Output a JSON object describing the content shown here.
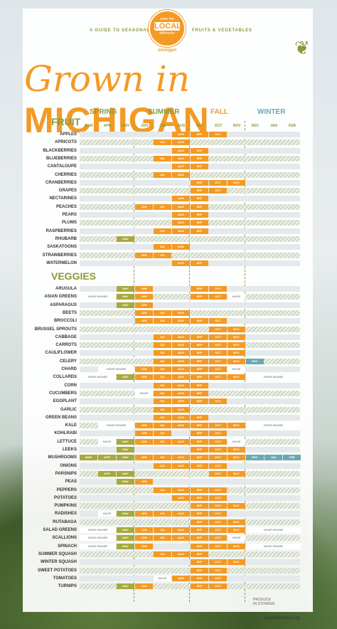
{
  "header": {
    "guide_left": "A GUIDE TO SEASONAL",
    "guide_right": "FRUITS & VEGETABLES",
    "logo_line1": "taste the",
    "logo_line2": "LOCAL",
    "logo_line3": "difference",
    "logo_line4": "michigan",
    "title_script": "Grown in",
    "title_caps": "MICHIGAN"
  },
  "seasons": [
    "SPRING",
    "SUMMER",
    "FALL",
    "WINTER"
  ],
  "months": [
    "MAR",
    "APR",
    "MAY",
    "JUN",
    "JUL",
    "AUG",
    "SEP",
    "OCT",
    "NOV",
    "DEC",
    "JAN",
    "FEB"
  ],
  "sections": {
    "fruit": "FRUIT",
    "veggies": "VEGGIES"
  },
  "fruit": [
    {
      "name": "APPLES",
      "cells": [
        [
          5,
          "AUG",
          "o"
        ],
        [
          6,
          "SEP",
          "o"
        ],
        [
          7,
          "OCT",
          "o"
        ]
      ]
    },
    {
      "name": "APRICOTS",
      "cells": [
        [
          4,
          "JUL",
          "o"
        ],
        [
          5,
          "AUG",
          "o"
        ]
      ]
    },
    {
      "name": "BLACKBERRIES",
      "cells": [
        [
          5,
          "AUG",
          "o"
        ],
        [
          6,
          "SEP",
          "o"
        ]
      ]
    },
    {
      "name": "BLUEBERRIES",
      "cells": [
        [
          4,
          "JUL",
          "o"
        ],
        [
          5,
          "AUG",
          "o"
        ],
        [
          6,
          "SEP",
          "o"
        ]
      ]
    },
    {
      "name": "CANTALOUPE",
      "cells": [
        [
          5,
          "AUG",
          "o"
        ],
        [
          6,
          "SEP",
          "o"
        ]
      ]
    },
    {
      "name": "CHERRIES",
      "cells": [
        [
          4,
          "JUL",
          "o"
        ],
        [
          5,
          "AUG",
          "o"
        ]
      ]
    },
    {
      "name": "CRANBERRIES",
      "cells": [
        [
          6,
          "SEP",
          "o"
        ],
        [
          7,
          "OCT",
          "o"
        ],
        [
          8,
          "NOV",
          "o"
        ]
      ]
    },
    {
      "name": "GRAPES",
      "cells": [
        [
          6,
          "SEP",
          "o"
        ],
        [
          7,
          "OCT",
          "o"
        ]
      ]
    },
    {
      "name": "NECTARINES",
      "cells": [
        [
          5,
          "AUG",
          "o"
        ],
        [
          6,
          "SEP",
          "o"
        ]
      ]
    },
    {
      "name": "PEACHES",
      "cells": [
        [
          3,
          "JUN",
          "o"
        ],
        [
          4,
          "JUL",
          "o"
        ],
        [
          5,
          "AUG",
          "o"
        ],
        [
          6,
          "SEP",
          "o"
        ]
      ]
    },
    {
      "name": "PEARS",
      "cells": [
        [
          5,
          "AUG",
          "o"
        ],
        [
          6,
          "SEP",
          "o"
        ]
      ]
    },
    {
      "name": "PLUMS",
      "cells": [
        [
          5,
          "AUG",
          "o"
        ],
        [
          6,
          "SEP",
          "o"
        ]
      ]
    },
    {
      "name": "RASPBERRIES",
      "cells": [
        [
          4,
          "JUL",
          "o"
        ],
        [
          5,
          "AUG",
          "o"
        ],
        [
          6,
          "SEP",
          "o"
        ]
      ]
    },
    {
      "name": "RHUBARB",
      "cells": [
        [
          2,
          "MAY",
          "g"
        ]
      ]
    },
    {
      "name": "SASKATOONS",
      "cells": [
        [
          4,
          "JUL",
          "o"
        ],
        [
          5,
          "AUG",
          "o"
        ]
      ]
    },
    {
      "name": "STRAWBERRIES",
      "cells": [
        [
          3,
          "JUN",
          "o"
        ],
        [
          4,
          "JUL",
          "o"
        ]
      ]
    },
    {
      "name": "WATERMELON",
      "cells": [
        [
          5,
          "AUG",
          "o"
        ],
        [
          6,
          "SEP",
          "o"
        ]
      ]
    }
  ],
  "veggies": [
    {
      "name": "ARUGULA",
      "cells": [
        [
          2,
          "MAY",
          "g"
        ],
        [
          3,
          "JUN",
          "o"
        ],
        [
          6,
          "SEP",
          "o"
        ],
        [
          7,
          "OCT",
          "o"
        ]
      ]
    },
    {
      "name": "ASIAN GREENS",
      "cells": [
        [
          0,
          "HOOP HOUSE",
          "w",
          2
        ],
        [
          2,
          "MAY",
          "g"
        ],
        [
          3,
          "JUN",
          "o"
        ],
        [
          6,
          "SEP",
          "o"
        ],
        [
          7,
          "OCT",
          "o"
        ],
        [
          8,
          "HOOP",
          "w"
        ]
      ]
    },
    {
      "name": "ASPARAGUS",
      "cells": [
        [
          2,
          "MAY",
          "g"
        ],
        [
          3,
          "JUN",
          "o"
        ]
      ]
    },
    {
      "name": "BEETS",
      "cells": [
        [
          3,
          "JUN",
          "o"
        ],
        [
          4,
          "JUL",
          "o"
        ],
        [
          5,
          "AUG",
          "o"
        ]
      ]
    },
    {
      "name": "BROCCOLI",
      "cells": [
        [
          3,
          "JUN",
          "o"
        ],
        [
          4,
          "JUL",
          "o"
        ],
        [
          5,
          "AUG",
          "o"
        ],
        [
          6,
          "SEP",
          "o"
        ],
        [
          7,
          "OCT",
          "o"
        ]
      ]
    },
    {
      "name": "BRUSSEL SPROUTS",
      "cells": [
        [
          7,
          "OCT",
          "o"
        ],
        [
          8,
          "NOV",
          "o"
        ]
      ]
    },
    {
      "name": "CABBAGE",
      "cells": [
        [
          4,
          "JUL",
          "o"
        ],
        [
          5,
          "AUG",
          "o"
        ],
        [
          6,
          "SEP",
          "o"
        ],
        [
          7,
          "OCT",
          "o"
        ],
        [
          8,
          "NOV",
          "o"
        ]
      ]
    },
    {
      "name": "CARROTS",
      "cells": [
        [
          4,
          "JUL",
          "o"
        ],
        [
          5,
          "AUG",
          "o"
        ],
        [
          6,
          "SEP",
          "o"
        ],
        [
          7,
          "OCT",
          "o"
        ],
        [
          8,
          "NOV",
          "o"
        ]
      ]
    },
    {
      "name": "CAULIFLOWER",
      "cells": [
        [
          4,
          "JUL",
          "o"
        ],
        [
          5,
          "AUG",
          "o"
        ],
        [
          6,
          "SEP",
          "o"
        ],
        [
          7,
          "OCT",
          "o"
        ],
        [
          8,
          "NOV",
          "o"
        ]
      ]
    },
    {
      "name": "CELERY",
      "cells": [
        [
          4,
          "JUL",
          "o"
        ],
        [
          5,
          "AUG",
          "o"
        ],
        [
          6,
          "SEP",
          "o"
        ],
        [
          7,
          "OCT",
          "o"
        ],
        [
          8,
          "NOV",
          "o"
        ],
        [
          9,
          "DEC",
          "b"
        ]
      ]
    },
    {
      "name": "CHARD",
      "cells": [
        [
          1,
          "HOOP HOUSE",
          "w",
          2
        ],
        [
          3,
          "JUN",
          "o"
        ],
        [
          4,
          "JUL",
          "o"
        ],
        [
          5,
          "AUG",
          "o"
        ],
        [
          6,
          "SEP",
          "o"
        ],
        [
          7,
          "OCT",
          "o"
        ],
        [
          8,
          "HOOP",
          "w"
        ]
      ]
    },
    {
      "name": "COLLARDS",
      "cells": [
        [
          0,
          "HOOP HOUSE",
          "w",
          2
        ],
        [
          2,
          "MAY",
          "g"
        ],
        [
          3,
          "JUN",
          "o"
        ],
        [
          4,
          "JUL",
          "o"
        ],
        [
          5,
          "AUG",
          "o"
        ],
        [
          6,
          "SEP",
          "o"
        ],
        [
          7,
          "OCT",
          "o"
        ],
        [
          8,
          "NOV",
          "o"
        ],
        [
          9,
          "HOOP HOUSE",
          "w",
          3
        ]
      ]
    },
    {
      "name": "CORN",
      "cells": [
        [
          4,
          "JUL",
          "o"
        ],
        [
          5,
          "AUG",
          "o"
        ],
        [
          6,
          "SEP",
          "o"
        ]
      ]
    },
    {
      "name": "CUCUMBERS",
      "cells": [
        [
          3,
          "HOOP",
          "w"
        ],
        [
          4,
          "JUL",
          "o"
        ],
        [
          5,
          "AUG",
          "o"
        ],
        [
          6,
          "SEP",
          "o"
        ]
      ]
    },
    {
      "name": "EGGPLANT",
      "cells": [
        [
          4,
          "JUL",
          "o"
        ],
        [
          5,
          "AUG",
          "o"
        ],
        [
          6,
          "SEP",
          "o"
        ],
        [
          7,
          "OCT",
          "o"
        ]
      ]
    },
    {
      "name": "GARLIC",
      "cells": [
        [
          4,
          "JUL",
          "o"
        ],
        [
          5,
          "AUG",
          "o"
        ]
      ]
    },
    {
      "name": "GREEN BEANS",
      "cells": [
        [
          4,
          "JUL",
          "o"
        ],
        [
          5,
          "AUG",
          "o"
        ],
        [
          6,
          "SEP",
          "o"
        ]
      ]
    },
    {
      "name": "KALE",
      "cells": [
        [
          1,
          "HOOP HOUSE",
          "w",
          2
        ],
        [
          3,
          "JUN",
          "o"
        ],
        [
          4,
          "JUL",
          "o"
        ],
        [
          5,
          "AUG",
          "o"
        ],
        [
          6,
          "SEP",
          "o"
        ],
        [
          7,
          "OCT",
          "o"
        ],
        [
          8,
          "NOV",
          "o"
        ],
        [
          9,
          "HOOP HOUSE",
          "w",
          3
        ]
      ]
    },
    {
      "name": "KOHLRABI",
      "cells": [
        [
          3,
          "JUN",
          "o"
        ],
        [
          4,
          "JUL",
          "o"
        ],
        [
          6,
          "SEP",
          "o"
        ],
        [
          7,
          "OCT",
          "o"
        ]
      ]
    },
    {
      "name": "LETTUCE",
      "cells": [
        [
          1,
          "HOOP",
          "w"
        ],
        [
          2,
          "MAY",
          "g"
        ],
        [
          3,
          "JUN",
          "o"
        ],
        [
          4,
          "JUL",
          "o"
        ],
        [
          5,
          "AUG",
          "o"
        ],
        [
          6,
          "SEP",
          "o"
        ],
        [
          7,
          "OCT",
          "o"
        ],
        [
          8,
          "HOOP",
          "w"
        ]
      ]
    },
    {
      "name": "LEEKS",
      "cells": [
        [
          2,
          "MAY",
          "g"
        ],
        [
          6,
          "SEP",
          "o"
        ],
        [
          7,
          "OCT",
          "o"
        ],
        [
          8,
          "NOV",
          "o"
        ]
      ]
    },
    {
      "name": "MUSHROOMS",
      "cells": [
        [
          0,
          "MAR",
          "g"
        ],
        [
          1,
          "APR",
          "g"
        ],
        [
          2,
          "MAY",
          "g"
        ],
        [
          3,
          "JUN",
          "o"
        ],
        [
          4,
          "JUL",
          "o"
        ],
        [
          5,
          "AUG",
          "o"
        ],
        [
          6,
          "SEP",
          "o"
        ],
        [
          7,
          "OCT",
          "o"
        ],
        [
          8,
          "NOV",
          "o"
        ],
        [
          9,
          "DEC",
          "b"
        ],
        [
          10,
          "JAN",
          "b"
        ],
        [
          11,
          "FEB",
          "b"
        ]
      ]
    },
    {
      "name": "ONIONS",
      "cells": [
        [
          4,
          "JUL",
          "o"
        ],
        [
          5,
          "AUG",
          "o"
        ],
        [
          6,
          "SEP",
          "o"
        ],
        [
          7,
          "OCT",
          "o"
        ]
      ]
    },
    {
      "name": "PARSNIPS",
      "cells": [
        [
          1,
          "APR",
          "g"
        ],
        [
          2,
          "MAY",
          "g"
        ],
        [
          7,
          "OCT",
          "o"
        ],
        [
          8,
          "NOV",
          "o"
        ]
      ]
    },
    {
      "name": "PEAS",
      "cells": [
        [
          2,
          "MAY",
          "g"
        ],
        [
          3,
          "JUN",
          "o"
        ]
      ]
    },
    {
      "name": "PEPPERS",
      "cells": [
        [
          4,
          "JUL",
          "o"
        ],
        [
          5,
          "AUG",
          "o"
        ],
        [
          6,
          "SEP",
          "o"
        ],
        [
          7,
          "OCT",
          "o"
        ]
      ]
    },
    {
      "name": "POTATOES",
      "cells": [
        [
          5,
          "AUG",
          "o"
        ],
        [
          6,
          "SEP",
          "o"
        ],
        [
          7,
          "OCT",
          "o"
        ]
      ]
    },
    {
      "name": "PUMPKINS",
      "cells": [
        [
          6,
          "SEP",
          "o"
        ],
        [
          7,
          "OCT",
          "o"
        ],
        [
          8,
          "NOV",
          "o"
        ]
      ]
    },
    {
      "name": "RADISHES",
      "cells": [
        [
          1,
          "HOOP",
          "w"
        ],
        [
          2,
          "MAY",
          "g"
        ],
        [
          3,
          "JUN",
          "o"
        ],
        [
          4,
          "JUL",
          "o"
        ],
        [
          5,
          "AUG",
          "o"
        ],
        [
          6,
          "SEP",
          "o"
        ],
        [
          7,
          "OCT",
          "o"
        ]
      ]
    },
    {
      "name": "RUTABAGA",
      "cells": [
        [
          6,
          "SEP",
          "o"
        ],
        [
          7,
          "OCT",
          "o"
        ],
        [
          8,
          "NOV",
          "o"
        ]
      ]
    },
    {
      "name": "SALAD GREENS",
      "cells": [
        [
          0,
          "HOOP HOUSE",
          "w",
          2
        ],
        [
          2,
          "MAY",
          "g"
        ],
        [
          3,
          "JUN",
          "o"
        ],
        [
          4,
          "JUL",
          "o"
        ],
        [
          5,
          "AUG",
          "o"
        ],
        [
          6,
          "SEP",
          "o"
        ],
        [
          7,
          "OCT",
          "o"
        ],
        [
          8,
          "NOV",
          "o"
        ],
        [
          9,
          "HOOP HOUSE",
          "w",
          3
        ]
      ]
    },
    {
      "name": "SCALLIONS",
      "cells": [
        [
          0,
          "HOOP HOUSE",
          "w",
          2
        ],
        [
          2,
          "MAY",
          "g"
        ],
        [
          3,
          "JUN",
          "o"
        ],
        [
          4,
          "JUL",
          "o"
        ],
        [
          5,
          "AUG",
          "o"
        ],
        [
          6,
          "SEP",
          "o"
        ],
        [
          7,
          "OCT",
          "o"
        ],
        [
          8,
          "HOOP",
          "w"
        ]
      ]
    },
    {
      "name": "SPINACH",
      "cells": [
        [
          0,
          "HOOP HOUSE",
          "w",
          2
        ],
        [
          2,
          "MAY",
          "g"
        ],
        [
          3,
          "JUN",
          "o"
        ],
        [
          6,
          "SEP",
          "o"
        ],
        [
          7,
          "OCT",
          "o"
        ],
        [
          8,
          "NOV",
          "o"
        ],
        [
          9,
          "HOOP HOUSE",
          "w",
          3
        ]
      ]
    },
    {
      "name": "SUMMER SQUASH",
      "cells": [
        [
          4,
          "JUL",
          "o"
        ],
        [
          5,
          "AUG",
          "o"
        ],
        [
          6,
          "SEP",
          "o"
        ]
      ]
    },
    {
      "name": "WINTER SQUASH",
      "cells": [
        [
          6,
          "SEP",
          "o"
        ],
        [
          7,
          "OCT",
          "o"
        ],
        [
          8,
          "NOV",
          "o"
        ]
      ]
    },
    {
      "name": "SWEET POTATOES",
      "cells": [
        [
          6,
          "SEP",
          "o"
        ],
        [
          7,
          "OCT",
          "o"
        ]
      ]
    },
    {
      "name": "TOMATOES",
      "cells": [
        [
          4,
          "HOOP",
          "w"
        ],
        [
          5,
          "AUG",
          "o"
        ],
        [
          6,
          "SEP",
          "o"
        ],
        [
          7,
          "OCT",
          "o"
        ]
      ]
    },
    {
      "name": "TURNIPS",
      "cells": [
        [
          2,
          "MAY",
          "g"
        ],
        [
          3,
          "JUN",
          "o"
        ],
        [
          6,
          "SEP",
          "o"
        ],
        [
          7,
          "OCT",
          "o"
        ]
      ]
    }
  ],
  "footnote_line1": "PRODUCE",
  "footnote_line2": "IN STORAGE",
  "site": "localdifference.org"
}
